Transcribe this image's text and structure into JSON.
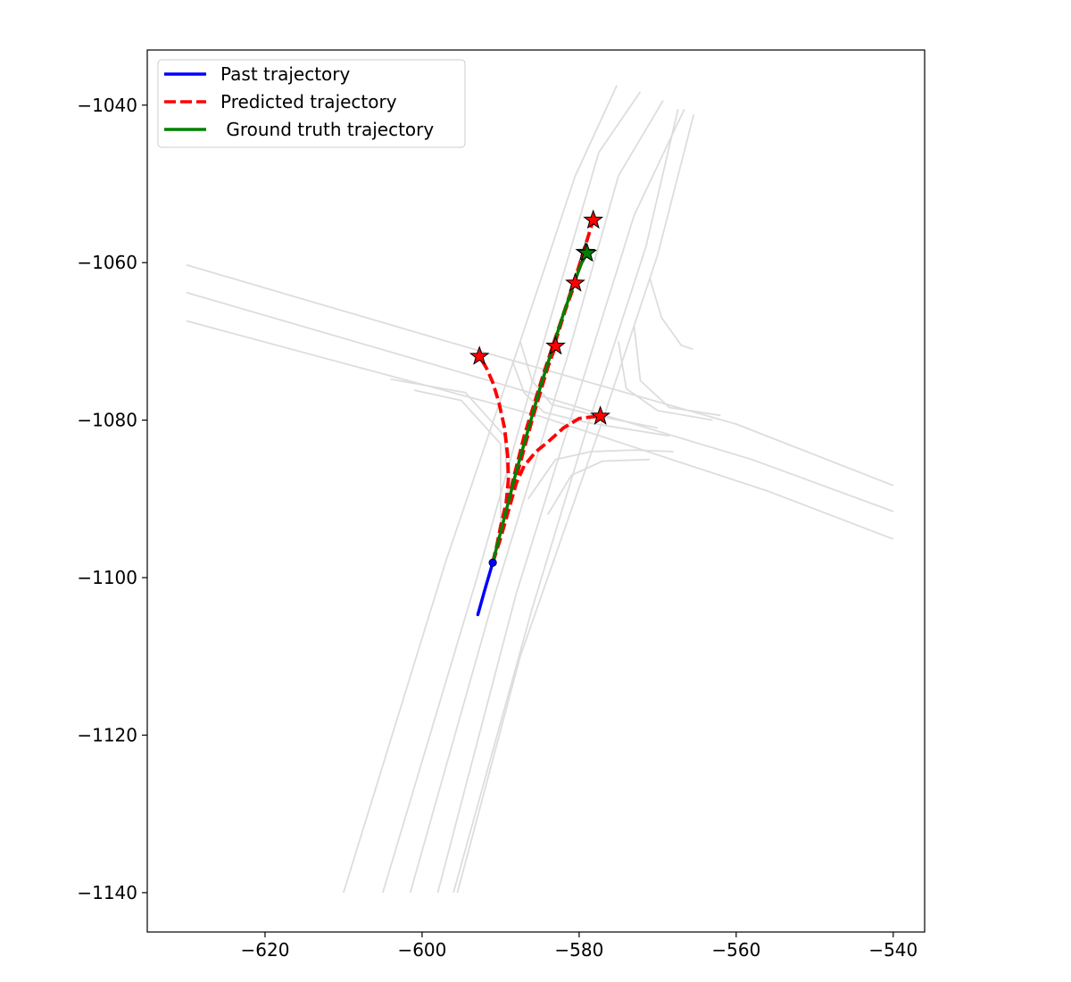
{
  "chart_data": {
    "type": "line",
    "title": "",
    "xlabel": "",
    "ylabel": "",
    "xlim": [
      -635,
      -536
    ],
    "ylim": [
      -1145,
      -1033
    ],
    "x_ticks": [
      -620,
      -600,
      -580,
      -560,
      -540
    ],
    "y_ticks": [
      -1040,
      -1060,
      -1080,
      -1100,
      -1120,
      -1140
    ],
    "x_tick_labels": [
      "−620",
      "−600",
      "−580",
      "−560",
      "−540"
    ],
    "y_tick_labels": [
      "−1040",
      "−1060",
      "−1080",
      "−1100",
      "−1120",
      "−1140"
    ],
    "grid": false,
    "legend": {
      "placement": "top-left",
      "entries": [
        "Past trajectory",
        "Predicted trajectory",
        " Ground truth trajectory"
      ]
    },
    "colors": {
      "past": "#0000ff",
      "predicted": "#ff0000",
      "ground_truth": "#008000",
      "map": "#dddddd",
      "star_edge": "#000000"
    },
    "series": [
      {
        "name": "Past trajectory",
        "style": "solid",
        "x": [
          -592.9,
          -592.0,
          -591.0
        ],
        "y": [
          -1104.7,
          -1101.5,
          -1098.1
        ]
      },
      {
        "name": " Ground truth trajectory",
        "style": "solid",
        "x": [
          -591.0,
          -588.0,
          -585.0,
          -582.0,
          -579.8,
          -579.0
        ],
        "y": [
          -1098.1,
          -1086.5,
          -1076.0,
          -1066.5,
          -1060.3,
          -1058.8
        ]
      }
    ],
    "predictions": [
      {
        "x": [
          -591.0,
          -589.5,
          -588.0,
          -586.5,
          -585.0,
          -583.0
        ],
        "y": [
          -1098.1,
          -1092.0,
          -1086.0,
          -1080.5,
          -1076.0,
          -1070.6
        ]
      },
      {
        "x": [
          -591.0,
          -589.0,
          -587.0,
          -584.5,
          -582.5,
          -580.5
        ],
        "y": [
          -1098.1,
          -1090.0,
          -1082.0,
          -1074.0,
          -1068.0,
          -1062.6
        ]
      },
      {
        "x": [
          -591.0,
          -588.5,
          -586.0,
          -583.5,
          -581.0,
          -579.2
        ],
        "y": [
          -1098.1,
          -1089.0,
          -1080.0,
          -1071.0,
          -1063.5,
          -1058.7
        ]
      },
      {
        "x": [
          -591.0,
          -588.5,
          -586.0,
          -583.0,
          -580.5,
          -578.2
        ],
        "y": [
          -1098.1,
          -1089.0,
          -1080.0,
          -1070.0,
          -1062.0,
          -1054.6
        ]
      },
      {
        "x": [
          -591.0,
          -590.5,
          -590.0,
          -589.3,
          -589.0,
          -589.1,
          -589.5,
          -590.2,
          -591.0,
          -591.8,
          -592.7
        ],
        "y": [
          -1098.1,
          -1096.0,
          -1093.5,
          -1090.5,
          -1087.5,
          -1084.5,
          -1081.0,
          -1077.8,
          -1075.2,
          -1073.4,
          -1071.9
        ]
      },
      {
        "x": [
          -591.0,
          -590.0,
          -589.0,
          -588.0,
          -587.0,
          -585.5,
          -584.0,
          -582.0,
          -580.0,
          -578.5,
          -577.3
        ],
        "y": [
          -1098.1,
          -1095.0,
          -1091.5,
          -1088.0,
          -1085.8,
          -1084.0,
          -1082.8,
          -1081.0,
          -1079.8,
          -1079.6,
          -1079.5
        ]
      }
    ],
    "prediction_endpoints": [
      {
        "x": -583.0,
        "y": -1070.6
      },
      {
        "x": -580.5,
        "y": -1062.6
      },
      {
        "x": -579.2,
        "y": -1058.7
      },
      {
        "x": -578.2,
        "y": -1054.6
      },
      {
        "x": -592.7,
        "y": -1071.9
      },
      {
        "x": -577.3,
        "y": -1079.5
      }
    ],
    "ground_truth_endpoint": {
      "x": -579.0,
      "y": -1058.8
    },
    "current_position": {
      "x": -591.0,
      "y": -1098.1
    },
    "map_lanes": [
      [
        [
          -610.0,
          -1140.0
        ],
        [
          -597.0,
          -1098.0
        ],
        [
          -587.5,
          -1070.0
        ],
        [
          -580.5,
          -1049.0
        ],
        [
          -575.2,
          -1037.5
        ]
      ],
      [
        [
          -605.0,
          -1140.0
        ],
        [
          -593.0,
          -1100.0
        ],
        [
          -584.5,
          -1070.0
        ],
        [
          -577.5,
          -1046.0
        ],
        [
          -572.2,
          -1038.3
        ]
      ],
      [
        [
          -601.5,
          -1140.0
        ],
        [
          -591.0,
          -1103.0
        ],
        [
          -581.5,
          -1072.0
        ],
        [
          -575.0,
          -1049.0
        ],
        [
          -569.3,
          -1039.4
        ]
      ],
      [
        [
          -598.0,
          -1140.0
        ],
        [
          -588.0,
          -1102.0
        ],
        [
          -580.5,
          -1078.0
        ],
        [
          -573.0,
          -1054.0
        ],
        [
          -566.6,
          -1040.5
        ]
      ],
      [
        [
          -596.0,
          -1140.0
        ],
        [
          -586.0,
          -1104.0
        ],
        [
          -579.0,
          -1081.0
        ],
        [
          -571.5,
          -1058.0
        ],
        [
          -567.4,
          -1040.5
        ]
      ],
      [
        [
          -595.5,
          -1140.0
        ],
        [
          -587.5,
          -1110.0
        ],
        [
          -577.0,
          -1080.0
        ],
        [
          -570.0,
          -1059.0
        ],
        [
          -565.4,
          -1041.2
        ]
      ],
      [
        [
          -630.0,
          -1060.3
        ],
        [
          -590.0,
          -1072.0
        ],
        [
          -560.0,
          -1080.5
        ],
        [
          -540.0,
          -1088.3
        ]
      ],
      [
        [
          -630.0,
          -1063.8
        ],
        [
          -588.0,
          -1076.0
        ],
        [
          -558.0,
          -1085.0
        ],
        [
          -540.0,
          -1091.6
        ]
      ],
      [
        [
          -630.0,
          -1067.4
        ],
        [
          -585.0,
          -1079.5
        ],
        [
          -556.0,
          -1089.0
        ],
        [
          -540.0,
          -1095.1
        ]
      ],
      [
        [
          -590.0,
          -1094.0
        ],
        [
          -590.0,
          -1083.0
        ],
        [
          -595.0,
          -1077.5
        ],
        [
          -601.0,
          -1076.2
        ]
      ],
      [
        [
          -589.0,
          -1090.0
        ],
        [
          -589.5,
          -1082.0
        ],
        [
          -594.5,
          -1076.5
        ],
        [
          -604.0,
          -1074.8
        ]
      ],
      [
        [
          -588.5,
          -1072.5
        ],
        [
          -587.0,
          -1076.5
        ],
        [
          -584.5,
          -1079.0
        ],
        [
          -579.0,
          -1080.3
        ],
        [
          -568.5,
          -1082.0
        ]
      ],
      [
        [
          -587.5,
          -1070.0
        ],
        [
          -586.0,
          -1075.0
        ],
        [
          -583.5,
          -1078.0
        ],
        [
          -578.0,
          -1079.4
        ],
        [
          -570.0,
          -1081.0
        ]
      ],
      [
        [
          -575.0,
          -1070.0
        ],
        [
          -574.0,
          -1076.0
        ],
        [
          -570.0,
          -1078.8
        ],
        [
          -563.0,
          -1080.0
        ]
      ],
      [
        [
          -573.0,
          -1068.0
        ],
        [
          -572.2,
          -1075.0
        ],
        [
          -568.5,
          -1078.4
        ],
        [
          -562.0,
          -1079.4
        ]
      ],
      [
        [
          -586.5,
          -1090.0
        ],
        [
          -583.0,
          -1085.0
        ],
        [
          -578.5,
          -1084.0
        ],
        [
          -573.0,
          -1083.8
        ],
        [
          -568.0,
          -1084.0
        ]
      ],
      [
        [
          -584.0,
          -1092.0
        ],
        [
          -581.0,
          -1087.0
        ],
        [
          -577.0,
          -1085.2
        ],
        [
          -571.0,
          -1085.0
        ]
      ],
      [
        [
          -571.0,
          -1062.0
        ],
        [
          -569.5,
          -1067.0
        ],
        [
          -567.0,
          -1070.5
        ],
        [
          -565.5,
          -1071.0
        ]
      ]
    ]
  }
}
